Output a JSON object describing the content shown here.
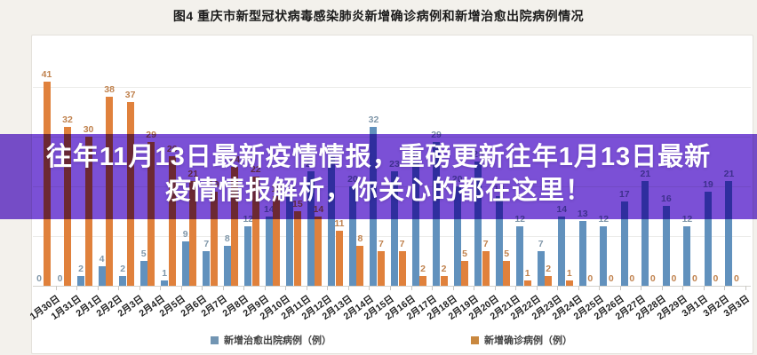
{
  "title": "图4  重庆市新型冠状病毒感染肺炎新增确诊病例和新增治愈出院病例情况",
  "overlay": {
    "line1": "往年11月13日最新疫情情报，重磅更新往年1月13日最新",
    "line2": "疫情情报解析，你关心的都在这里！",
    "color": "#7b50d6"
  },
  "legend": [
    {
      "label": "新增治愈出院病例（例）",
      "color": "#7295b3"
    },
    {
      "label": "新增确诊病例（例）",
      "color": "#c9883f"
    }
  ],
  "chart_data": {
    "type": "bar",
    "title": "图4  重庆市新型冠状病毒感染肺炎新增确诊病例和新增治愈出院病例情况",
    "categories": [
      "1月30日",
      "1月31日",
      "2月1日",
      "2月2日",
      "2月3日",
      "2月4日",
      "2月5日",
      "2月6日",
      "2月7日",
      "2月8日",
      "2月9日",
      "2月10日",
      "2月11日",
      "2月12日",
      "2月13日",
      "2月14日",
      "2月15日",
      "2月16日",
      "2月17日",
      "2月18日",
      "2月19日",
      "2月20日",
      "2月21日",
      "2月22日",
      "2月23日",
      "2月24日",
      "2月25日",
      "2月26日",
      "2月27日",
      "2月28日",
      "2月29日",
      "3月1日",
      "3月2日",
      "3月3日"
    ],
    "series": [
      {
        "name": "新增治愈出院病例（例）",
        "color": "#6191bd",
        "label_color": "#8097a9",
        "values": [
          0,
          0,
          2,
          4,
          2,
          5,
          1,
          9,
          7,
          8,
          12,
          14,
          18,
          23,
          26,
          20,
          32,
          23,
          25,
          29,
          20,
          25,
          18,
          12,
          7,
          14,
          13,
          12,
          17,
          21,
          16,
          12,
          19,
          21
        ]
      },
      {
        "name": "新增确诊病例（例）",
        "color": "#e0813c",
        "label_color": "#c0824e",
        "values": [
          41,
          32,
          30,
          38,
          37,
          29,
          26,
          21,
          19,
          24,
          22,
          18,
          15,
          14,
          11,
          8,
          7,
          7,
          2,
          2,
          5,
          7,
          5,
          1,
          2,
          1,
          0,
          0,
          0,
          0,
          0,
          0,
          0,
          0
        ]
      }
    ],
    "ylim": [
      0,
      50
    ],
    "grid_step": 10,
    "grid": true,
    "legend_position": "bottom",
    "value_labels": true,
    "xlabel": "",
    "ylabel": ""
  }
}
